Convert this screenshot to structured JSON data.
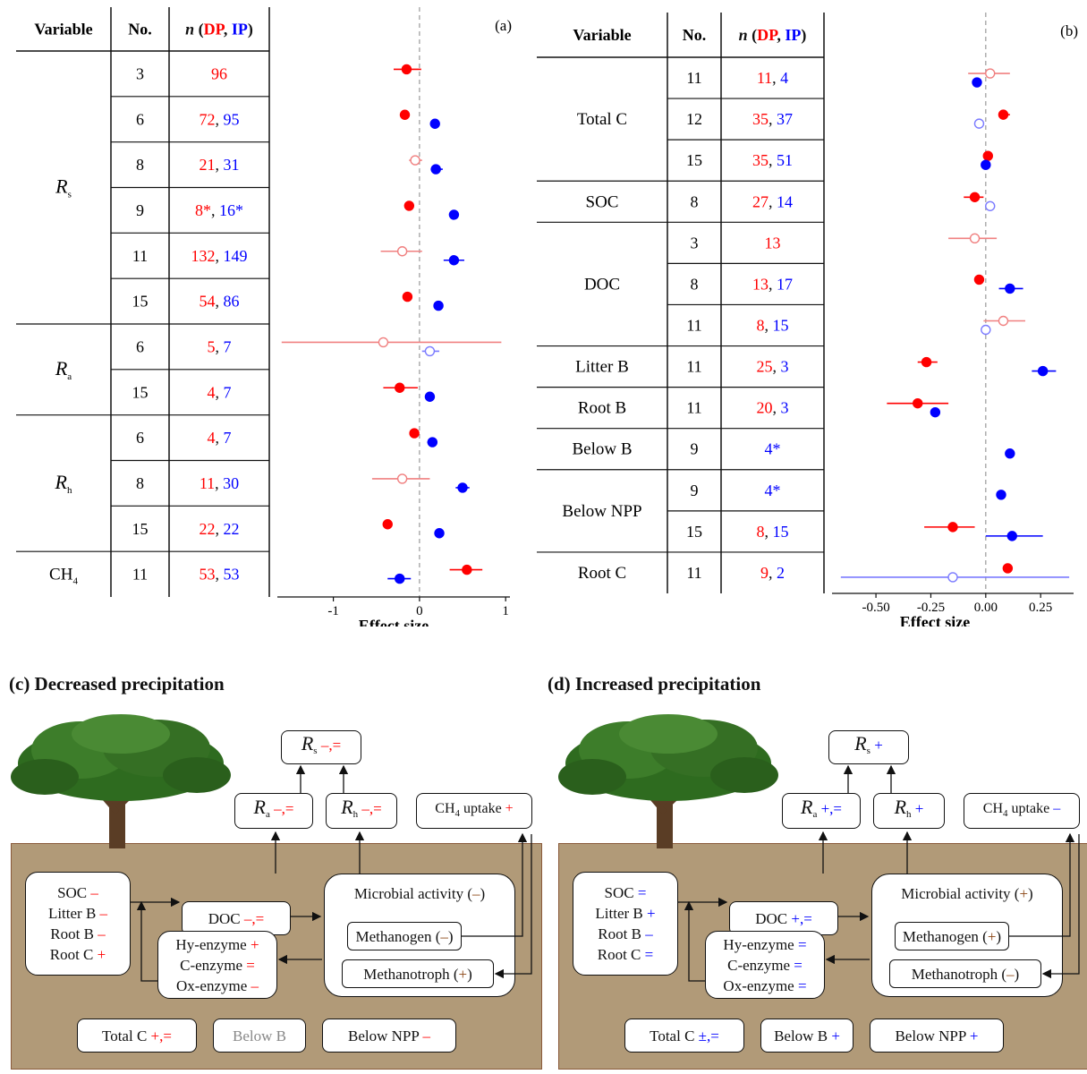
{
  "colors": {
    "dp": "#ff0000",
    "ip": "#0000ff",
    "sig_fill": "solid",
    "nonsig": "#ff6b6b",
    "brown": "#8b4513"
  },
  "panel_a": {
    "label": "(a)",
    "headers": {
      "variable": "Variable",
      "no": "No.",
      "n_prefix": "n",
      "dp": "DP",
      "ip": "IP"
    },
    "xlabel": "Effect size",
    "ticks": [
      "-1",
      "0",
      "1"
    ],
    "groups": [
      {
        "name": "R",
        "sub": "s",
        "rows": [
          0,
          5
        ]
      },
      {
        "name": "R",
        "sub": "a",
        "rows": [
          6,
          7
        ]
      },
      {
        "name": "R",
        "sub": "h",
        "rows": [
          8,
          10
        ]
      },
      {
        "name": "CH",
        "sub": "4",
        "rows": [
          11,
          11
        ],
        "plain": true
      }
    ],
    "rows": [
      {
        "no": "3",
        "dp": "96",
        "ip": ""
      },
      {
        "no": "6",
        "dp": "72",
        "ip": "95"
      },
      {
        "no": "8",
        "dp": "21",
        "ip": "31"
      },
      {
        "no": "9",
        "dp": "8*",
        "ip": "16*"
      },
      {
        "no": "11",
        "dp": "132",
        "ip": "149"
      },
      {
        "no": "15",
        "dp": "54",
        "ip": "86"
      },
      {
        "no": "6",
        "dp": "5",
        "ip": "7"
      },
      {
        "no": "15",
        "dp": "4",
        "ip": "7"
      },
      {
        "no": "6",
        "dp": "4",
        "ip": "7"
      },
      {
        "no": "8",
        "dp": "11",
        "ip": "30"
      },
      {
        "no": "15",
        "dp": "22",
        "ip": "22"
      },
      {
        "no": "11",
        "dp": "53",
        "ip": "53"
      }
    ]
  },
  "panel_b": {
    "label": "(b)",
    "headers": {
      "variable": "Variable",
      "no": "No.",
      "n_prefix": "n",
      "dp": "DP",
      "ip": "IP"
    },
    "xlabel": "Effect size",
    "ticks": [
      "-0.50",
      "-0.25",
      "0.00",
      "0.25"
    ],
    "groups": [
      {
        "name": "Total C",
        "rows": [
          0,
          2
        ]
      },
      {
        "name": "SOC",
        "rows": [
          3,
          3
        ]
      },
      {
        "name": "DOC",
        "rows": [
          4,
          6
        ]
      },
      {
        "name": "Litter B",
        "rows": [
          7,
          7
        ]
      },
      {
        "name": "Root B",
        "rows": [
          8,
          8
        ]
      },
      {
        "name": "Below B",
        "rows": [
          9,
          9
        ]
      },
      {
        "name": "Below NPP",
        "rows": [
          10,
          11
        ]
      },
      {
        "name": "Root C",
        "rows": [
          12,
          12
        ]
      }
    ],
    "rows": [
      {
        "no": "11",
        "dp": "11",
        "ip": "4"
      },
      {
        "no": "12",
        "dp": "35",
        "ip": "37"
      },
      {
        "no": "15",
        "dp": "35",
        "ip": "51"
      },
      {
        "no": "8",
        "dp": "27",
        "ip": "14"
      },
      {
        "no": "3",
        "dp": "13",
        "ip": ""
      },
      {
        "no": "8",
        "dp": "13",
        "ip": "17"
      },
      {
        "no": "11",
        "dp": "8",
        "ip": "15"
      },
      {
        "no": "11",
        "dp": "25",
        "ip": "3"
      },
      {
        "no": "11",
        "dp": "20",
        "ip": "3"
      },
      {
        "no": "9",
        "dp": "",
        "ip": "4*"
      },
      {
        "no": "9",
        "dp": "",
        "ip": "4*"
      },
      {
        "no": "15",
        "dp": "8",
        "ip": "15"
      },
      {
        "no": "11",
        "dp": "9",
        "ip": "2"
      }
    ]
  },
  "chart_data": [
    {
      "type": "scatter",
      "panel": "a",
      "xlabel": "Effect size",
      "xlim": [
        -1.65,
        1.05
      ],
      "series": [
        {
          "name": "DP",
          "points": [
            {
              "row": 0,
              "x": -0.15,
              "lo": -0.3,
              "hi": 0.02,
              "sig": true
            },
            {
              "row": 1,
              "x": -0.17,
              "lo": -0.2,
              "hi": -0.14,
              "sig": true
            },
            {
              "row": 2,
              "x": -0.05,
              "lo": -0.12,
              "hi": 0.03,
              "sig": false
            },
            {
              "row": 3,
              "x": -0.12,
              "lo": -0.14,
              "hi": -0.1,
              "sig": true
            },
            {
              "row": 4,
              "x": -0.2,
              "lo": -0.45,
              "hi": 0.03,
              "sig": false
            },
            {
              "row": 5,
              "x": -0.14,
              "lo": -0.17,
              "hi": -0.11,
              "sig": true
            },
            {
              "row": 6,
              "x": -0.42,
              "lo": -1.6,
              "hi": 0.95,
              "sig": false
            },
            {
              "row": 7,
              "x": -0.23,
              "lo": -0.42,
              "hi": -0.02,
              "sig": true
            },
            {
              "row": 8,
              "x": -0.06,
              "lo": -0.1,
              "hi": -0.02,
              "sig": true
            },
            {
              "row": 9,
              "x": -0.2,
              "lo": -0.55,
              "hi": 0.12,
              "sig": false
            },
            {
              "row": 10,
              "x": -0.37,
              "lo": -0.39,
              "hi": -0.35,
              "sig": true
            },
            {
              "row": 11,
              "x": 0.55,
              "lo": 0.35,
              "hi": 0.73,
              "sig": true
            }
          ]
        },
        {
          "name": "IP",
          "points": [
            {
              "row": 1,
              "x": 0.18,
              "lo": 0.16,
              "hi": 0.2,
              "sig": true
            },
            {
              "row": 2,
              "x": 0.19,
              "lo": 0.13,
              "hi": 0.27,
              "sig": true
            },
            {
              "row": 3,
              "x": 0.4,
              "lo": 0.38,
              "hi": 0.42,
              "sig": true
            },
            {
              "row": 4,
              "x": 0.4,
              "lo": 0.28,
              "hi": 0.52,
              "sig": true
            },
            {
              "row": 5,
              "x": 0.22,
              "lo": 0.2,
              "hi": 0.24,
              "sig": true
            },
            {
              "row": 6,
              "x": 0.12,
              "lo": 0.03,
              "hi": 0.23,
              "sig": false
            },
            {
              "row": 7,
              "x": 0.12,
              "lo": 0.09,
              "hi": 0.15,
              "sig": true
            },
            {
              "row": 8,
              "x": 0.15,
              "lo": 0.09,
              "hi": 0.2,
              "sig": true
            },
            {
              "row": 9,
              "x": 0.5,
              "lo": 0.42,
              "hi": 0.58,
              "sig": true
            },
            {
              "row": 10,
              "x": 0.23,
              "lo": 0.21,
              "hi": 0.25,
              "sig": true
            },
            {
              "row": 11,
              "x": -0.23,
              "lo": -0.37,
              "hi": -0.1,
              "sig": true
            }
          ]
        }
      ]
    },
    {
      "type": "scatter",
      "panel": "b",
      "xlabel": "Effect size",
      "xlim": [
        -0.7,
        0.4
      ],
      "series": [
        {
          "name": "DP",
          "points": [
            {
              "row": 0,
              "x": 0.02,
              "lo": -0.08,
              "hi": 0.11,
              "sig": false
            },
            {
              "row": 1,
              "x": 0.08,
              "lo": 0.06,
              "hi": 0.11,
              "sig": true
            },
            {
              "row": 2,
              "x": 0.01,
              "lo": 0.0,
              "hi": 0.02,
              "sig": true
            },
            {
              "row": 3,
              "x": -0.05,
              "lo": -0.1,
              "hi": -0.01,
              "sig": true
            },
            {
              "row": 4,
              "x": -0.05,
              "lo": -0.17,
              "hi": 0.05,
              "sig": false
            },
            {
              "row": 5,
              "x": -0.03,
              "lo": -0.05,
              "hi": -0.01,
              "sig": true
            },
            {
              "row": 6,
              "x": 0.08,
              "lo": -0.01,
              "hi": 0.18,
              "sig": false
            },
            {
              "row": 7,
              "x": -0.27,
              "lo": -0.31,
              "hi": -0.22,
              "sig": true
            },
            {
              "row": 8,
              "x": -0.31,
              "lo": -0.45,
              "hi": -0.17,
              "sig": true
            },
            {
              "row": 11,
              "x": -0.15,
              "lo": -0.28,
              "hi": -0.05,
              "sig": true
            },
            {
              "row": 12,
              "x": 0.1,
              "lo": 0.08,
              "hi": 0.12,
              "sig": true
            }
          ]
        },
        {
          "name": "IP",
          "points": [
            {
              "row": 0,
              "x": -0.04,
              "lo": -0.05,
              "hi": -0.03,
              "sig": true
            },
            {
              "row": 1,
              "x": -0.03,
              "lo": -0.05,
              "hi": -0.01,
              "sig": false
            },
            {
              "row": 2,
              "x": 0.0,
              "lo": -0.01,
              "hi": 0.01,
              "sig": true
            },
            {
              "row": 3,
              "x": 0.02,
              "lo": 0.0,
              "hi": 0.04,
              "sig": false
            },
            {
              "row": 5,
              "x": 0.11,
              "lo": 0.06,
              "hi": 0.17,
              "sig": true
            },
            {
              "row": 6,
              "x": 0.0,
              "lo": -0.02,
              "hi": 0.02,
              "sig": false
            },
            {
              "row": 7,
              "x": 0.26,
              "lo": 0.21,
              "hi": 0.32,
              "sig": true
            },
            {
              "row": 8,
              "x": -0.23,
              "lo": -0.25,
              "hi": -0.21,
              "sig": true
            },
            {
              "row": 9,
              "x": 0.11,
              "lo": 0.1,
              "hi": 0.12,
              "sig": true
            },
            {
              "row": 10,
              "x": 0.07,
              "lo": 0.06,
              "hi": 0.08,
              "sig": true
            },
            {
              "row": 11,
              "x": 0.12,
              "lo": 0.0,
              "hi": 0.26,
              "sig": true
            },
            {
              "row": 12,
              "x": -0.15,
              "lo": -0.66,
              "hi": 0.38,
              "sig": false
            }
          ]
        }
      ]
    }
  ],
  "panel_c": {
    "title": "(c) Decreased precipitation",
    "rs": {
      "sym": "R",
      "sub": "s",
      "val": "–,="
    },
    "ra": {
      "sym": "R",
      "sub": "a",
      "val": "–,="
    },
    "rh": {
      "sym": "R",
      "sub": "h",
      "val": "–,="
    },
    "ch4": {
      "label": "CH",
      "sub": "4",
      "tail": " uptake ",
      "val": "+"
    },
    "pools": [
      {
        "l": "SOC ",
        "v": "–"
      },
      {
        "l": "Litter B ",
        "v": "–"
      },
      {
        "l": "Root B ",
        "v": "–"
      },
      {
        "l": "Root C ",
        "v": "+"
      }
    ],
    "doc": {
      "l": "DOC ",
      "v": "–,="
    },
    "microbe": {
      "l": "Microbial activity (",
      "v": "–",
      "r": ")"
    },
    "methanogen": {
      "l": "Methanogen (",
      "v": "–",
      "r": ")"
    },
    "methanotroph": {
      "l": "Methanotroph (",
      "v": "+",
      "r": ")"
    },
    "enzymes": [
      {
        "l": "Hy-enzyme ",
        "v": "+"
      },
      {
        "l": "C-enzyme ",
        "v": "="
      },
      {
        "l": "Ox-enzyme ",
        "v": "–"
      }
    ],
    "totalc": {
      "l": "Total C ",
      "v": "+,="
    },
    "belowb": {
      "l": "Below B"
    },
    "belownpp": {
      "l": "Below NPP ",
      "v": "–"
    }
  },
  "panel_d": {
    "title": "(d) Increased precipitation",
    "rs": {
      "sym": "R",
      "sub": "s",
      "val": "+"
    },
    "ra": {
      "sym": "R",
      "sub": "a",
      "val": "+,="
    },
    "rh": {
      "sym": "R",
      "sub": "h",
      "val": "+"
    },
    "ch4": {
      "label": "CH",
      "sub": "4",
      "tail": " uptake ",
      "val": "–"
    },
    "pools": [
      {
        "l": "SOC ",
        "v": "="
      },
      {
        "l": "Litter B ",
        "v": "+"
      },
      {
        "l": "Root B ",
        "v": "–"
      },
      {
        "l": "Root C ",
        "v": "="
      }
    ],
    "doc": {
      "l": "DOC ",
      "v": "+,="
    },
    "microbe": {
      "l": "Microbial activity (",
      "v": "+",
      "r": ")"
    },
    "methanogen": {
      "l": "Methanogen (",
      "v": "+",
      "r": ")"
    },
    "methanotroph": {
      "l": "Methanotroph (",
      "v": "–",
      "r": ")"
    },
    "enzymes": [
      {
        "l": "Hy-enzyme ",
        "v": "="
      },
      {
        "l": "C-enzyme ",
        "v": "="
      },
      {
        "l": "Ox-enzyme ",
        "v": "="
      }
    ],
    "totalc": {
      "l": "Total C ",
      "v": "±,="
    },
    "belowb": {
      "l": "Below B ",
      "v": "+"
    },
    "belownpp": {
      "l": "Below NPP ",
      "v": "+"
    }
  }
}
